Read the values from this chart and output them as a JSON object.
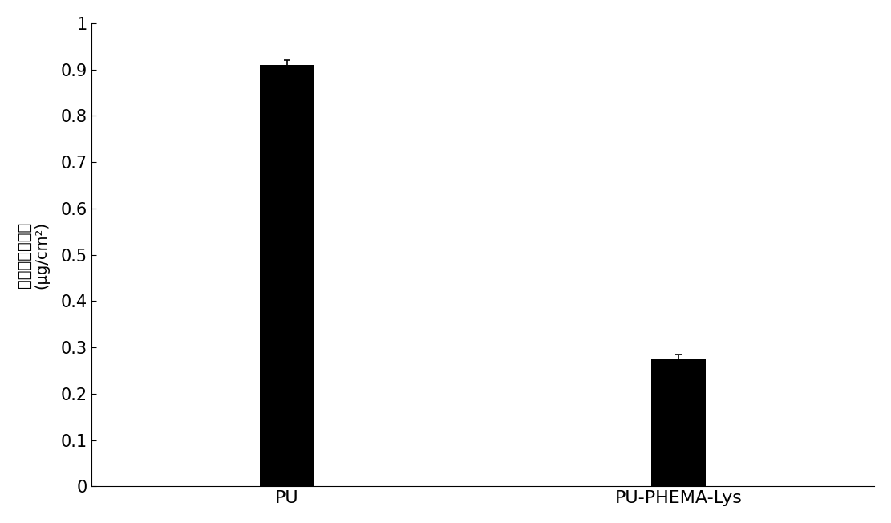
{
  "categories": [
    "PU",
    "PU-PHEMA-Lys"
  ],
  "values": [
    0.91,
    0.275
  ],
  "errors": [
    0.01,
    0.01
  ],
  "bar_color": "#000000",
  "bar_width": 0.28,
  "bar_positions": [
    1,
    3
  ],
  "xlim": [
    0,
    4.0
  ],
  "ylabel_line1": "纤维蛋白原吸附",
  "ylabel_line2": "(μg/cm²)",
  "ylim": [
    0,
    1.0
  ],
  "yticks": [
    0,
    0.1,
    0.2,
    0.3,
    0.4,
    0.5,
    0.6,
    0.7,
    0.8,
    0.9,
    1.0
  ],
  "ytick_labels": [
    "0",
    "0.1",
    "0.2",
    "0.3",
    "0.4",
    "0.5",
    "0.6",
    "0.7",
    "0.8",
    "0.9",
    "1"
  ],
  "background_color": "#ffffff",
  "tick_fontsize": 15,
  "label_fontsize": 14,
  "x_label_fontsize": 16
}
